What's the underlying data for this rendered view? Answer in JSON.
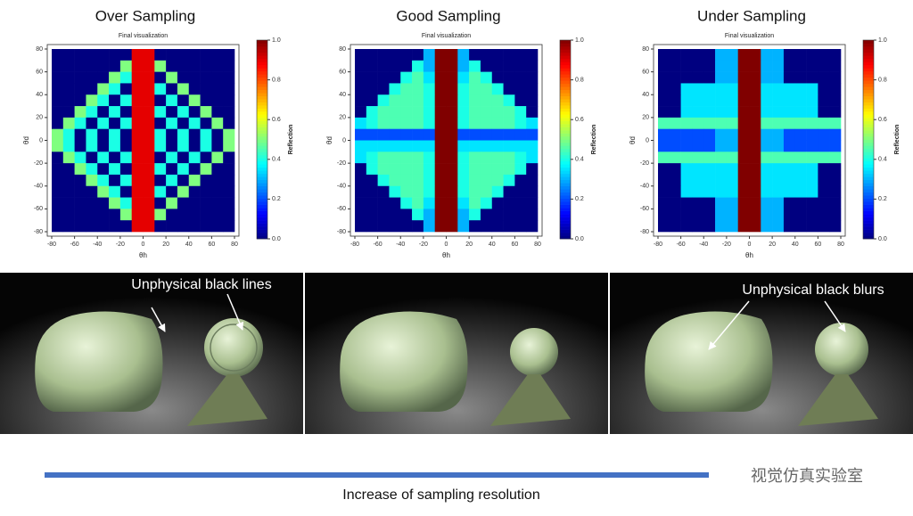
{
  "chart_data": [
    {
      "type": "heatmap",
      "title": "Over Sampling",
      "subtitle": "Final visualization",
      "xlabel": "θh",
      "ylabel": "θd",
      "xlim": [
        -80,
        80
      ],
      "ylim": [
        -80,
        80
      ],
      "xticks": [
        -80,
        -60,
        -40,
        -20,
        0,
        20,
        40,
        60,
        80
      ],
      "yticks": [
        -80,
        -60,
        -40,
        -20,
        0,
        20,
        40,
        60,
        80
      ],
      "colorbar": {
        "label": "Reflection",
        "lim": [
          0,
          1
        ],
        "ticks": [
          {
            "value": 0,
            "label": "0.0"
          },
          {
            "value": 0.2,
            "label": "0.2"
          },
          {
            "value": 0.4,
            "label": "0.4"
          },
          {
            "value": 0.6,
            "label": "0.6"
          },
          {
            "value": 0.8,
            "label": "0.8"
          },
          {
            "value": 1,
            "label": "1.0"
          }
        ]
      },
      "z": [
        [
          0,
          0,
          0,
          0,
          0,
          0,
          0,
          0.9,
          0.9,
          0,
          0,
          0,
          0,
          0,
          0,
          0
        ],
        [
          0,
          0,
          0,
          0,
          0,
          0,
          0.5,
          0.9,
          0.9,
          0.5,
          0,
          0,
          0,
          0,
          0,
          0
        ],
        [
          0,
          0,
          0,
          0,
          0,
          0.5,
          0.4,
          0.9,
          0.9,
          0,
          0.5,
          0,
          0,
          0,
          0,
          0
        ],
        [
          0,
          0,
          0,
          0,
          0.5,
          0.4,
          0,
          0.9,
          0.9,
          0.4,
          0,
          0.5,
          0,
          0,
          0,
          0
        ],
        [
          0,
          0,
          0,
          0.5,
          0.4,
          0,
          0.4,
          0.9,
          0.9,
          0,
          0.4,
          0,
          0.5,
          0,
          0,
          0
        ],
        [
          0,
          0,
          0.5,
          0.4,
          0,
          0.4,
          0,
          0.9,
          0.9,
          0.4,
          0,
          0.4,
          0,
          0.5,
          0,
          0
        ],
        [
          0,
          0.5,
          0.4,
          0,
          0.4,
          0,
          0.4,
          0.9,
          0.9,
          0,
          0.4,
          0,
          0.4,
          0,
          0.5,
          0
        ],
        [
          0.5,
          0.4,
          0,
          0.4,
          0,
          0.4,
          0,
          0.9,
          0.9,
          0.4,
          0,
          0.4,
          0,
          0.4,
          0,
          0.5
        ],
        [
          0.5,
          0.4,
          0,
          0.4,
          0,
          0.4,
          0,
          0.9,
          0.9,
          0.4,
          0,
          0.4,
          0,
          0.4,
          0,
          0.5
        ],
        [
          0,
          0.5,
          0.4,
          0,
          0.4,
          0,
          0.4,
          0.9,
          0.9,
          0,
          0.4,
          0,
          0.4,
          0,
          0.5,
          0
        ],
        [
          0,
          0,
          0.5,
          0.4,
          0,
          0.4,
          0,
          0.9,
          0.9,
          0.4,
          0,
          0.4,
          0,
          0.5,
          0,
          0
        ],
        [
          0,
          0,
          0,
          0.5,
          0.4,
          0,
          0.4,
          0.9,
          0.9,
          0,
          0.4,
          0,
          0.5,
          0,
          0,
          0
        ],
        [
          0,
          0,
          0,
          0,
          0.5,
          0.4,
          0,
          0.9,
          0.9,
          0.4,
          0,
          0.5,
          0,
          0,
          0,
          0
        ],
        [
          0,
          0,
          0,
          0,
          0,
          0.5,
          0.4,
          0.9,
          0.9,
          0,
          0.5,
          0,
          0,
          0,
          0,
          0
        ],
        [
          0,
          0,
          0,
          0,
          0,
          0,
          0.5,
          0.9,
          0.9,
          0.5,
          0,
          0,
          0,
          0,
          0,
          0
        ],
        [
          0,
          0,
          0,
          0,
          0,
          0,
          0,
          0.9,
          0.9,
          0,
          0,
          0,
          0,
          0,
          0,
          0
        ]
      ]
    },
    {
      "type": "heatmap",
      "title": "Good Sampling",
      "subtitle": "Final visualization",
      "xlabel": "θh",
      "ylabel": "θd",
      "xlim": [
        -80,
        80
      ],
      "ylim": [
        -80,
        80
      ],
      "xticks": [
        -80,
        -60,
        -40,
        -20,
        0,
        20,
        40,
        60,
        80
      ],
      "yticks": [
        -80,
        -60,
        -40,
        -20,
        0,
        20,
        40,
        60,
        80
      ],
      "colorbar": {
        "label": "Reflection",
        "lim": [
          0,
          1
        ],
        "ticks": [
          {
            "value": 0,
            "label": "0.0"
          },
          {
            "value": 0.2,
            "label": "0.2"
          },
          {
            "value": 0.4,
            "label": "0.4"
          },
          {
            "value": 0.6,
            "label": "0.6"
          },
          {
            "value": 0.8,
            "label": "0.8"
          },
          {
            "value": 1,
            "label": "1.0"
          }
        ]
      },
      "z": [
        [
          0,
          0,
          0,
          0,
          0,
          0,
          0.3,
          1,
          1,
          0.3,
          0,
          0,
          0,
          0,
          0,
          0
        ],
        [
          0,
          0,
          0,
          0,
          0,
          0.4,
          0.3,
          1,
          1,
          0.3,
          0.4,
          0,
          0,
          0,
          0,
          0
        ],
        [
          0,
          0,
          0,
          0,
          0.4,
          0.45,
          0.35,
          1,
          1,
          0.35,
          0.45,
          0.4,
          0,
          0,
          0,
          0
        ],
        [
          0,
          0,
          0,
          0.4,
          0.45,
          0.45,
          0.4,
          1,
          1,
          0.4,
          0.45,
          0.45,
          0.4,
          0,
          0,
          0
        ],
        [
          0,
          0,
          0.4,
          0.45,
          0.45,
          0.45,
          0.4,
          1,
          1,
          0.4,
          0.45,
          0.45,
          0.45,
          0.4,
          0,
          0
        ],
        [
          0,
          0.4,
          0.45,
          0.45,
          0.45,
          0.45,
          0.4,
          1,
          1,
          0.4,
          0.45,
          0.45,
          0.45,
          0.45,
          0.4,
          0
        ],
        [
          0.35,
          0.4,
          0.45,
          0.45,
          0.45,
          0.45,
          0.4,
          1,
          1,
          0.4,
          0.45,
          0.45,
          0.45,
          0.45,
          0.4,
          0.35
        ],
        [
          0.2,
          0.2,
          0.2,
          0.2,
          0.2,
          0.2,
          0.2,
          1,
          1,
          0.2,
          0.2,
          0.2,
          0.2,
          0.2,
          0.2,
          0.2
        ],
        [
          0.35,
          0.35,
          0.35,
          0.35,
          0.35,
          0.35,
          0.35,
          1,
          1,
          0.35,
          0.35,
          0.35,
          0.35,
          0.35,
          0.35,
          0.35
        ],
        [
          0.35,
          0.4,
          0.45,
          0.45,
          0.45,
          0.45,
          0.4,
          1,
          1,
          0.4,
          0.45,
          0.45,
          0.45,
          0.45,
          0.4,
          0.35
        ],
        [
          0,
          0.4,
          0.45,
          0.45,
          0.45,
          0.45,
          0.4,
          1,
          1,
          0.4,
          0.45,
          0.45,
          0.45,
          0.45,
          0.4,
          0
        ],
        [
          0,
          0,
          0.4,
          0.45,
          0.45,
          0.45,
          0.4,
          1,
          1,
          0.4,
          0.45,
          0.45,
          0.45,
          0.4,
          0,
          0
        ],
        [
          0,
          0,
          0,
          0.4,
          0.45,
          0.45,
          0.4,
          1,
          1,
          0.4,
          0.45,
          0.45,
          0.4,
          0,
          0,
          0
        ],
        [
          0,
          0,
          0,
          0,
          0.4,
          0.45,
          0.35,
          1,
          1,
          0.35,
          0.45,
          0.4,
          0,
          0,
          0,
          0
        ],
        [
          0,
          0,
          0,
          0,
          0,
          0.4,
          0.3,
          1,
          1,
          0.3,
          0.4,
          0,
          0,
          0,
          0,
          0
        ],
        [
          0,
          0,
          0,
          0,
          0,
          0,
          0.3,
          1,
          1,
          0.3,
          0,
          0,
          0,
          0,
          0,
          0
        ]
      ]
    },
    {
      "type": "heatmap",
      "title": "Under Sampling",
      "subtitle": "Final visualization",
      "xlabel": "θh",
      "ylabel": "θd",
      "xlim": [
        -80,
        80
      ],
      "ylim": [
        -80,
        80
      ],
      "xticks": [
        -80,
        -60,
        -40,
        -20,
        0,
        20,
        40,
        60,
        80
      ],
      "yticks": [
        -80,
        -60,
        -40,
        -20,
        0,
        20,
        40,
        60,
        80
      ],
      "colorbar": {
        "label": "Reflection",
        "lim": [
          0,
          1
        ],
        "ticks": [
          {
            "value": 0,
            "label": "0.0"
          },
          {
            "value": 0.2,
            "label": "0.2"
          },
          {
            "value": 0.4,
            "label": "0.4"
          },
          {
            "value": 0.6,
            "label": "0.6"
          },
          {
            "value": 0.8,
            "label": "0.8"
          },
          {
            "value": 1,
            "label": "1.0"
          }
        ]
      },
      "z": [
        [
          0,
          0,
          0,
          0,
          0,
          0.3,
          0.3,
          1,
          1,
          0.3,
          0.3,
          0,
          0,
          0,
          0,
          0
        ],
        [
          0,
          0,
          0,
          0,
          0,
          0.3,
          0.3,
          1,
          1,
          0.3,
          0.3,
          0,
          0,
          0,
          0,
          0
        ],
        [
          0,
          0,
          0,
          0,
          0,
          0.3,
          0.3,
          1,
          1,
          0.3,
          0.3,
          0,
          0,
          0,
          0,
          0
        ],
        [
          0,
          0,
          0.35,
          0.35,
          0.35,
          0.35,
          0.35,
          1,
          1,
          0.35,
          0.35,
          0.35,
          0.35,
          0.35,
          0,
          0
        ],
        [
          0,
          0,
          0.35,
          0.35,
          0.35,
          0.35,
          0.35,
          1,
          1,
          0.35,
          0.35,
          0.35,
          0.35,
          0.35,
          0,
          0
        ],
        [
          0,
          0,
          0.35,
          0.35,
          0.35,
          0.35,
          0.35,
          1,
          1,
          0.35,
          0.35,
          0.35,
          0.35,
          0.35,
          0,
          0
        ],
        [
          0.45,
          0.45,
          0.45,
          0.45,
          0.45,
          0.45,
          0.45,
          1,
          1,
          0.45,
          0.45,
          0.45,
          0.45,
          0.45,
          0.45,
          0.45
        ],
        [
          0.2,
          0.2,
          0.2,
          0.2,
          0.2,
          0.3,
          0.3,
          1,
          1,
          0.3,
          0.3,
          0.2,
          0.2,
          0.2,
          0.2,
          0.2
        ],
        [
          0.2,
          0.2,
          0.2,
          0.2,
          0.2,
          0.3,
          0.3,
          1,
          1,
          0.3,
          0.3,
          0.2,
          0.2,
          0.2,
          0.2,
          0.2
        ],
        [
          0.45,
          0.45,
          0.45,
          0.45,
          0.45,
          0.45,
          0.45,
          1,
          1,
          0.45,
          0.45,
          0.45,
          0.45,
          0.45,
          0.45,
          0.45
        ],
        [
          0,
          0,
          0.35,
          0.35,
          0.35,
          0.35,
          0.35,
          1,
          1,
          0.35,
          0.35,
          0.35,
          0.35,
          0.35,
          0,
          0
        ],
        [
          0,
          0,
          0.35,
          0.35,
          0.35,
          0.35,
          0.35,
          1,
          1,
          0.35,
          0.35,
          0.35,
          0.35,
          0.35,
          0,
          0
        ],
        [
          0,
          0,
          0.35,
          0.35,
          0.35,
          0.35,
          0.35,
          1,
          1,
          0.35,
          0.35,
          0.35,
          0.35,
          0.35,
          0,
          0
        ],
        [
          0,
          0,
          0,
          0,
          0,
          0.3,
          0.3,
          1,
          1,
          0.3,
          0.3,
          0,
          0,
          0,
          0,
          0
        ],
        [
          0,
          0,
          0,
          0,
          0,
          0.3,
          0.3,
          1,
          1,
          0.3,
          0.3,
          0,
          0,
          0,
          0,
          0
        ],
        [
          0,
          0,
          0,
          0,
          0,
          0.3,
          0.3,
          1,
          1,
          0.3,
          0.3,
          0,
          0,
          0,
          0,
          0
        ]
      ]
    }
  ],
  "annotations": [
    "Unphysical black lines",
    "Unphysical black blurs"
  ],
  "footer": {
    "caption": "Increase of sampling resolution",
    "watermark": "视觉仿真实验室"
  }
}
